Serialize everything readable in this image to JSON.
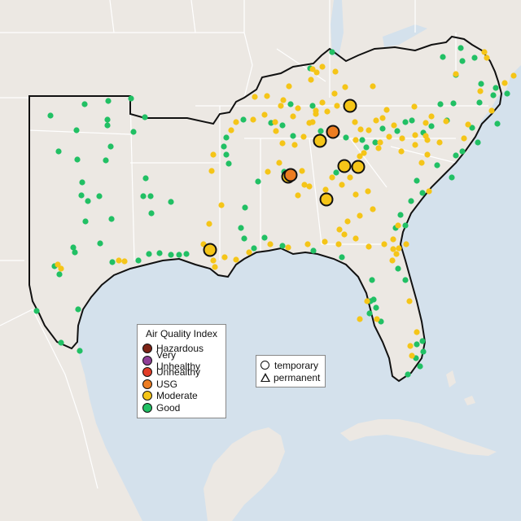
{
  "legend": {
    "title": "Air Quality Index",
    "categories": [
      {
        "label": "Hazardous",
        "color": "#7e2417"
      },
      {
        "label": "Very Unhealthy",
        "color": "#8f3f97"
      },
      {
        "label": "Unhealthy",
        "color": "#e23d28"
      },
      {
        "label": "USG",
        "color": "#ed7d22"
      },
      {
        "label": "Moderate",
        "color": "#f5c518"
      },
      {
        "label": "Good",
        "color": "#21c064"
      }
    ]
  },
  "monitor_types": [
    {
      "label": "temporary",
      "symbol": "circle"
    },
    {
      "label": "permanent",
      "symbol": "triangle"
    }
  ],
  "colors": {
    "water": "#d4e1ec",
    "land": "#ece8e3",
    "region": "#e7e2dc",
    "boundary": "#111111",
    "state_line": "#ffffff"
  }
}
